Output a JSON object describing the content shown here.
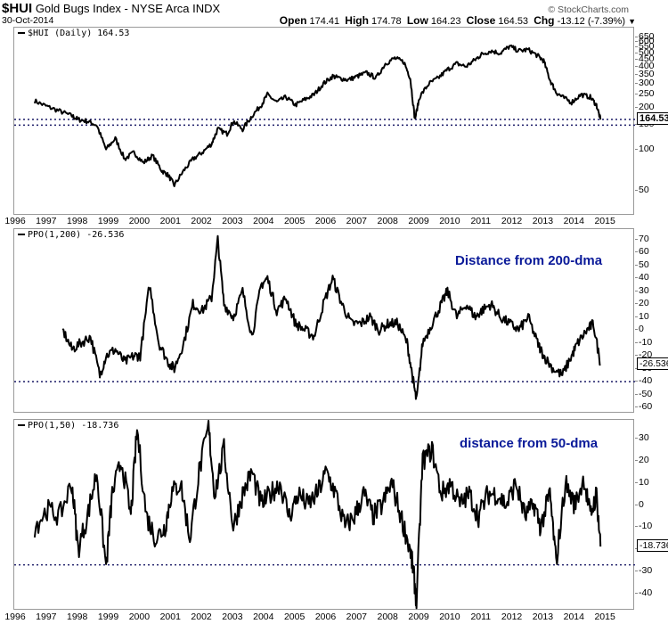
{
  "header": {
    "symbol": "$HUI",
    "name": "Gold Bugs Index - NYSE Arca INDX",
    "date": "30-Oct-2014",
    "copyright": "© StockCharts.com",
    "stats": {
      "open_label": "Open",
      "open": "174.41",
      "high_label": "High",
      "high": "174.78",
      "low_label": "Low",
      "low": "164.23",
      "close_label": "Close",
      "close": "164.53",
      "chg_label": "Chg",
      "chg": "-13.12 (-7.39%)",
      "dropdown_icon": "▼"
    }
  },
  "panels": {
    "price": {
      "legend": "$HUI (Daily) 164.53",
      "last_tag": "164.53"
    },
    "ppo200": {
      "legend": "PPO(1,200) -26.536",
      "last_tag": "-26.536",
      "annotation": "Distance from 200-dma"
    },
    "ppo50": {
      "legend": "PPO(1,50) -18.736",
      "last_tag": "-18.736",
      "annotation": "distance from 50-dma"
    }
  },
  "colors": {
    "line": "#000000",
    "annotation": "#0a1a99",
    "dotted": "#1a1a66",
    "grid": "#999999"
  },
  "chart_data": [
    {
      "type": "line",
      "title": "$HUI (Daily) 164.53",
      "scale": "log",
      "yticks": [
        50,
        100,
        150,
        200,
        250,
        300,
        350,
        400,
        450,
        500,
        550,
        600,
        650
      ],
      "ylim": [
        35,
        680
      ],
      "xticks": [
        "1996",
        "1997",
        "1998",
        "1999",
        "2000",
        "2001",
        "2002",
        "2003",
        "2004",
        "2005",
        "2006",
        "2007",
        "2008",
        "2009",
        "2010",
        "2011",
        "2012",
        "2013",
        "2014",
        "2015"
      ],
      "horizontal_lines": [
        165,
        150
      ],
      "x": [
        1996.6,
        1997.0,
        1997.4,
        1997.8,
        1998.0,
        1998.3,
        1998.6,
        1998.9,
        1999.2,
        1999.5,
        1999.8,
        2000.1,
        2000.4,
        2000.7,
        2000.9,
        2001.1,
        2001.4,
        2001.7,
        2002.0,
        2002.3,
        2002.5,
        2002.8,
        2003.0,
        2003.3,
        2003.6,
        2003.9,
        2004.1,
        2004.4,
        2004.7,
        2005.0,
        2005.3,
        2005.6,
        2005.9,
        2006.2,
        2006.4,
        2006.7,
        2007.0,
        2007.3,
        2007.6,
        2007.9,
        2008.2,
        2008.5,
        2008.7,
        2008.85,
        2009.0,
        2009.3,
        2009.6,
        2009.9,
        2010.2,
        2010.5,
        2010.8,
        2011.0,
        2011.3,
        2011.6,
        2011.9,
        2012.2,
        2012.5,
        2012.8,
        2013.0,
        2013.2,
        2013.4,
        2013.6,
        2013.9,
        2014.2,
        2014.5,
        2014.7,
        2014.83
      ],
      "values": [
        225,
        205,
        190,
        175,
        165,
        160,
        150,
        100,
        120,
        85,
        95,
        80,
        90,
        70,
        65,
        55,
        70,
        85,
        95,
        110,
        140,
        130,
        160,
        140,
        175,
        210,
        250,
        220,
        240,
        210,
        230,
        250,
        300,
        340,
        330,
        320,
        340,
        360,
        330,
        420,
        460,
        430,
        330,
        165,
        240,
        300,
        330,
        380,
        420,
        400,
        450,
        490,
        520,
        500,
        560,
        520,
        530,
        480,
        440,
        320,
        260,
        240,
        220,
        250,
        240,
        210,
        164.5
      ]
    },
    {
      "type": "line",
      "title": "PPO(1,200) -26.536",
      "annotation": "Distance from 200-dma",
      "yticks": [
        70,
        60,
        50,
        40,
        30,
        20,
        10,
        0,
        -10,
        -20,
        -30,
        -40,
        -50,
        -60
      ],
      "ylim": [
        -62,
        74
      ],
      "horizontal_lines": [
        -40
      ],
      "x": [
        1997.5,
        1997.8,
        1998.1,
        1998.4,
        1998.7,
        1998.9,
        1999.2,
        1999.5,
        1999.8,
        2000.0,
        2000.3,
        2000.6,
        2000.9,
        2001.1,
        2001.4,
        2001.7,
        2002.0,
        2002.3,
        2002.5,
        2002.7,
        2003.0,
        2003.3,
        2003.6,
        2003.9,
        2004.1,
        2004.4,
        2004.7,
        2005.0,
        2005.3,
        2005.6,
        2005.9,
        2006.2,
        2006.5,
        2006.8,
        2007.1,
        2007.4,
        2007.7,
        2008.0,
        2008.3,
        2008.6,
        2008.8,
        2008.9,
        2009.1,
        2009.4,
        2009.7,
        2009.9,
        2010.2,
        2010.5,
        2010.8,
        2011.0,
        2011.3,
        2011.6,
        2011.9,
        2012.2,
        2012.5,
        2012.8,
        2013.0,
        2013.3,
        2013.6,
        2013.9,
        2014.1,
        2014.4,
        2014.6,
        2014.83
      ],
      "values": [
        0,
        -15,
        -10,
        -5,
        -35,
        -20,
        -15,
        -25,
        -20,
        -20,
        35,
        -10,
        -25,
        -30,
        -10,
        20,
        15,
        25,
        70,
        20,
        10,
        30,
        -5,
        35,
        40,
        15,
        25,
        5,
        0,
        -5,
        20,
        40,
        20,
        5,
        5,
        10,
        0,
        5,
        5,
        -10,
        -40,
        -55,
        -10,
        5,
        20,
        30,
        10,
        20,
        10,
        15,
        20,
        10,
        5,
        0,
        10,
        -10,
        -20,
        -30,
        -35,
        -20,
        -10,
        0,
        5,
        -26.5
      ]
    },
    {
      "type": "line",
      "title": "PPO(1,50) -18.736",
      "annotation": "distance from 50-dma",
      "yticks": [
        30,
        20,
        10,
        0,
        -10,
        -20,
        -30,
        -40
      ],
      "ylim": [
        -46,
        36
      ],
      "horizontal_lines": [
        -27
      ],
      "x": [
        1996.6,
        1997.0,
        1997.4,
        1997.8,
        1998.0,
        1998.3,
        1998.6,
        1998.9,
        1999.1,
        1999.4,
        1999.7,
        1999.9,
        2000.2,
        2000.5,
        2000.8,
        2001.0,
        2001.3,
        2001.6,
        2001.9,
        2002.2,
        2002.4,
        2002.7,
        2003.0,
        2003.3,
        2003.6,
        2003.9,
        2004.2,
        2004.5,
        2004.8,
        2005.1,
        2005.4,
        2005.7,
        2006.0,
        2006.3,
        2006.6,
        2006.9,
        2007.2,
        2007.5,
        2007.8,
        2008.1,
        2008.4,
        2008.7,
        2008.8,
        2008.9,
        2009.1,
        2009.4,
        2009.7,
        2010.0,
        2010.3,
        2010.6,
        2010.9,
        2011.2,
        2011.5,
        2011.8,
        2012.1,
        2012.4,
        2012.7,
        2012.9,
        2013.2,
        2013.4,
        2013.7,
        2014.0,
        2014.3,
        2014.5,
        2014.7,
        2014.83
      ],
      "values": [
        -10,
        -2,
        -5,
        10,
        -20,
        -5,
        15,
        -28,
        5,
        20,
        -5,
        34,
        -5,
        -15,
        -10,
        5,
        10,
        -15,
        15,
        35,
        5,
        25,
        -10,
        5,
        15,
        0,
        5,
        10,
        -5,
        5,
        0,
        5,
        15,
        5,
        -10,
        -5,
        5,
        -5,
        0,
        10,
        -5,
        -20,
        -30,
        -43,
        20,
        25,
        5,
        10,
        0,
        5,
        -5,
        5,
        5,
        0,
        10,
        -5,
        0,
        -10,
        5,
        -26,
        10,
        0,
        12,
        -5,
        5,
        -18.7
      ]
    }
  ]
}
